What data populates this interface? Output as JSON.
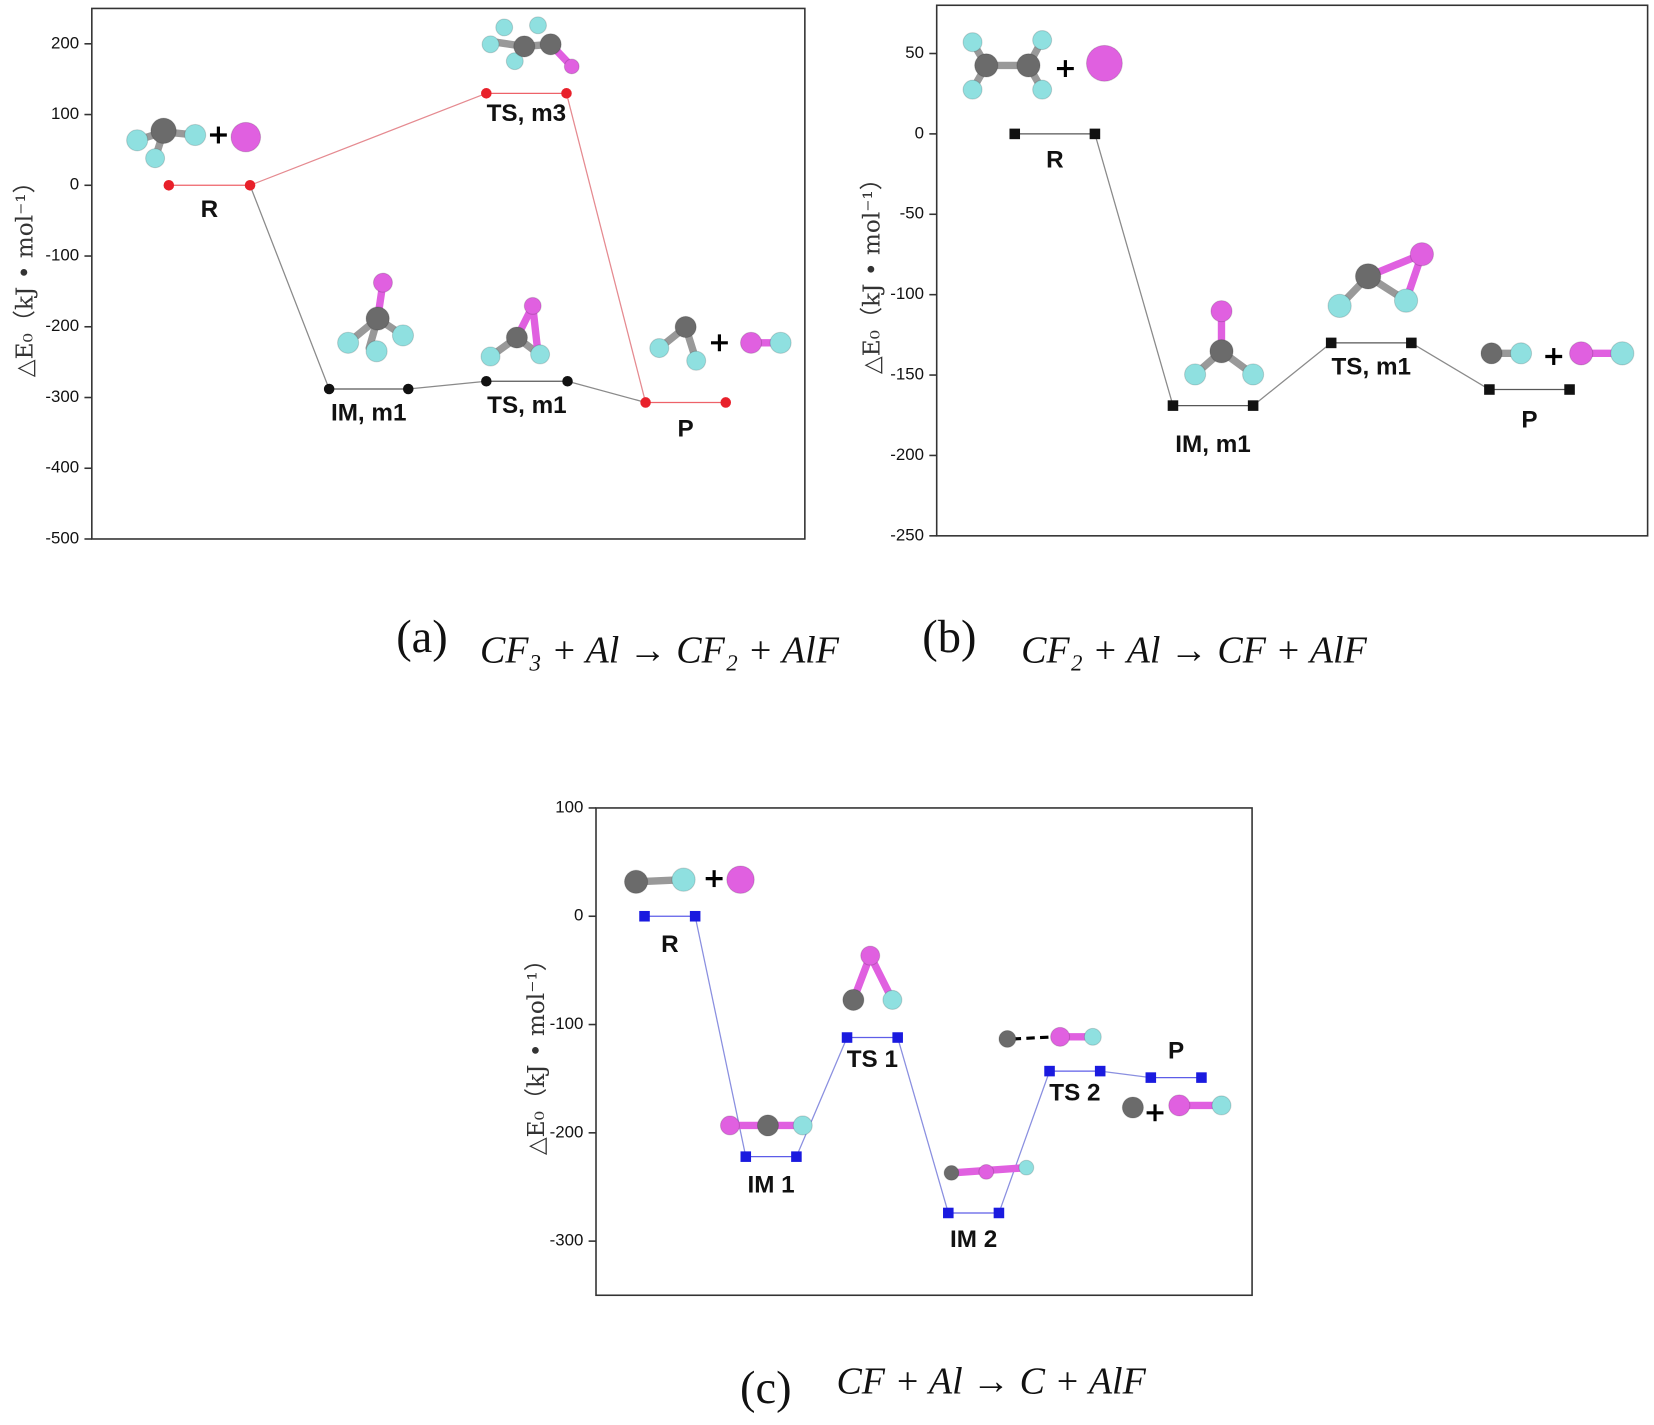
{
  "chart_data": [
    {
      "type": "energy",
      "caption": "(a)",
      "equation": "CF₃ + Al → CF₂ + AlF",
      "ylabel": "△E₀（kJ • mol⁻¹）",
      "ylim": [
        -500,
        250
      ],
      "yticks": [
        -500,
        -400,
        -300,
        -200,
        -100,
        0,
        100,
        200
      ],
      "levels": [
        {
          "label": "R",
          "value": 0,
          "color": "#e8202a"
        },
        {
          "label": "IM, m1",
          "value": -288,
          "color": "#111111"
        },
        {
          "label": "TS, m1",
          "value": -277,
          "color": "#111111"
        },
        {
          "label": "TS, m3",
          "value": 130,
          "color": "#e8202a"
        },
        {
          "label": "P",
          "value": -307,
          "color": "#e8202a"
        }
      ],
      "paths": [
        {
          "color": "#8a8a8a",
          "levels": [
            0,
            1,
            2,
            4
          ]
        },
        {
          "color": "#e58a90",
          "levels": [
            0,
            3,
            4
          ]
        }
      ]
    },
    {
      "type": "energy",
      "caption": "(b)",
      "equation": "CF₂ + Al → CF + AlF",
      "ylabel": "△E₀（kJ • mol⁻¹）",
      "ylim": [
        -250,
        80
      ],
      "yticks": [
        -250,
        -200,
        -150,
        -100,
        -50,
        0,
        50
      ],
      "levels": [
        {
          "label": "R",
          "value": 0,
          "color": "#111111"
        },
        {
          "label": "IM, m1",
          "value": -169,
          "color": "#111111"
        },
        {
          "label": "TS, m1",
          "value": -130,
          "color": "#111111"
        },
        {
          "label": "P",
          "value": -159,
          "color": "#111111"
        }
      ],
      "paths": [
        {
          "color": "#8a8a8a",
          "levels": [
            0,
            1,
            2,
            3
          ]
        }
      ]
    },
    {
      "type": "energy",
      "caption": "(c)",
      "equation": "CF + Al → C + AlF",
      "ylabel": "△E₀（kJ • mol⁻¹）",
      "ylim": [
        -350,
        100
      ],
      "yticks": [
        -300,
        -200,
        -100,
        0,
        100
      ],
      "levels": [
        {
          "label": "R",
          "value": 0,
          "color": "#1a1adf"
        },
        {
          "label": "IM 1",
          "value": -222,
          "color": "#1a1adf"
        },
        {
          "label": "TS 1",
          "value": -112,
          "color": "#1a1adf"
        },
        {
          "label": "IM 2",
          "value": -274,
          "color": "#1a1adf"
        },
        {
          "label": "TS 2",
          "value": -143,
          "color": "#1a1adf"
        },
        {
          "label": "P",
          "value": -149,
          "color": "#1a1adf"
        }
      ],
      "paths": [
        {
          "color": "#8a8fe0",
          "levels": [
            0,
            1,
            2,
            3,
            4,
            5
          ]
        }
      ]
    }
  ]
}
